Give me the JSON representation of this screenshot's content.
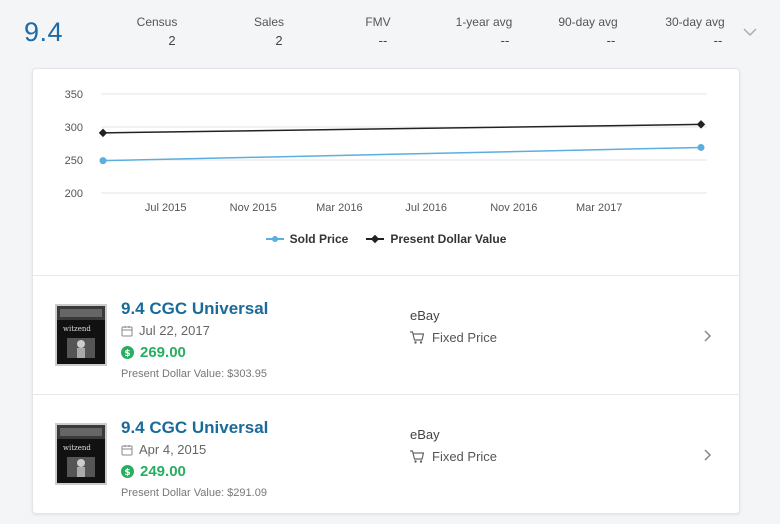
{
  "header": {
    "grade": "9.4",
    "stats": [
      {
        "label": "Census",
        "value": "2"
      },
      {
        "label": "Sales",
        "value": "2"
      },
      {
        "label": "FMV",
        "value": "--"
      },
      {
        "label": "1-year avg",
        "value": "--"
      },
      {
        "label": "90-day avg",
        "value": "--"
      },
      {
        "label": "30-day avg",
        "value": "--"
      }
    ],
    "expand_icon": "chevron-down-icon"
  },
  "chart_data": {
    "type": "line",
    "title": "",
    "xlabel": "",
    "ylabel": "",
    "ylim": [
      200,
      350
    ],
    "yticks": [
      "350",
      "300",
      "250",
      "200"
    ],
    "xticks": [
      "Jul 2015",
      "Nov 2015",
      "Mar 2016",
      "Jul 2016",
      "Nov 2016",
      "Mar 2017"
    ],
    "x": [
      "Apr 4, 2015",
      "Jul 22, 2017"
    ],
    "series": [
      {
        "name": "Sold Price",
        "values": [
          249.0,
          269.0
        ],
        "color": "#5aaee0"
      },
      {
        "name": "Present Dollar Value",
        "values": [
          291.09,
          303.95
        ],
        "color": "#222222"
      }
    ],
    "legend": "bottom-center",
    "grid": true
  },
  "sales": [
    {
      "title": "9.4 CGC Universal",
      "date": "Jul 22, 2017",
      "price": "269.00",
      "pdv": "Present Dollar Value: $303.95",
      "source": "eBay",
      "sale_type": "Fixed Price",
      "thumb_label": "witzend"
    },
    {
      "title": "9.4 CGC Universal",
      "date": "Apr 4, 2015",
      "price": "249.00",
      "pdv": "Present Dollar Value: $291.09",
      "source": "eBay",
      "sale_type": "Fixed Price",
      "thumb_label": "witzend"
    }
  ],
  "colors": {
    "accent": "#1f6aa5",
    "price": "#27ae60",
    "title": "#1a6a9a"
  }
}
